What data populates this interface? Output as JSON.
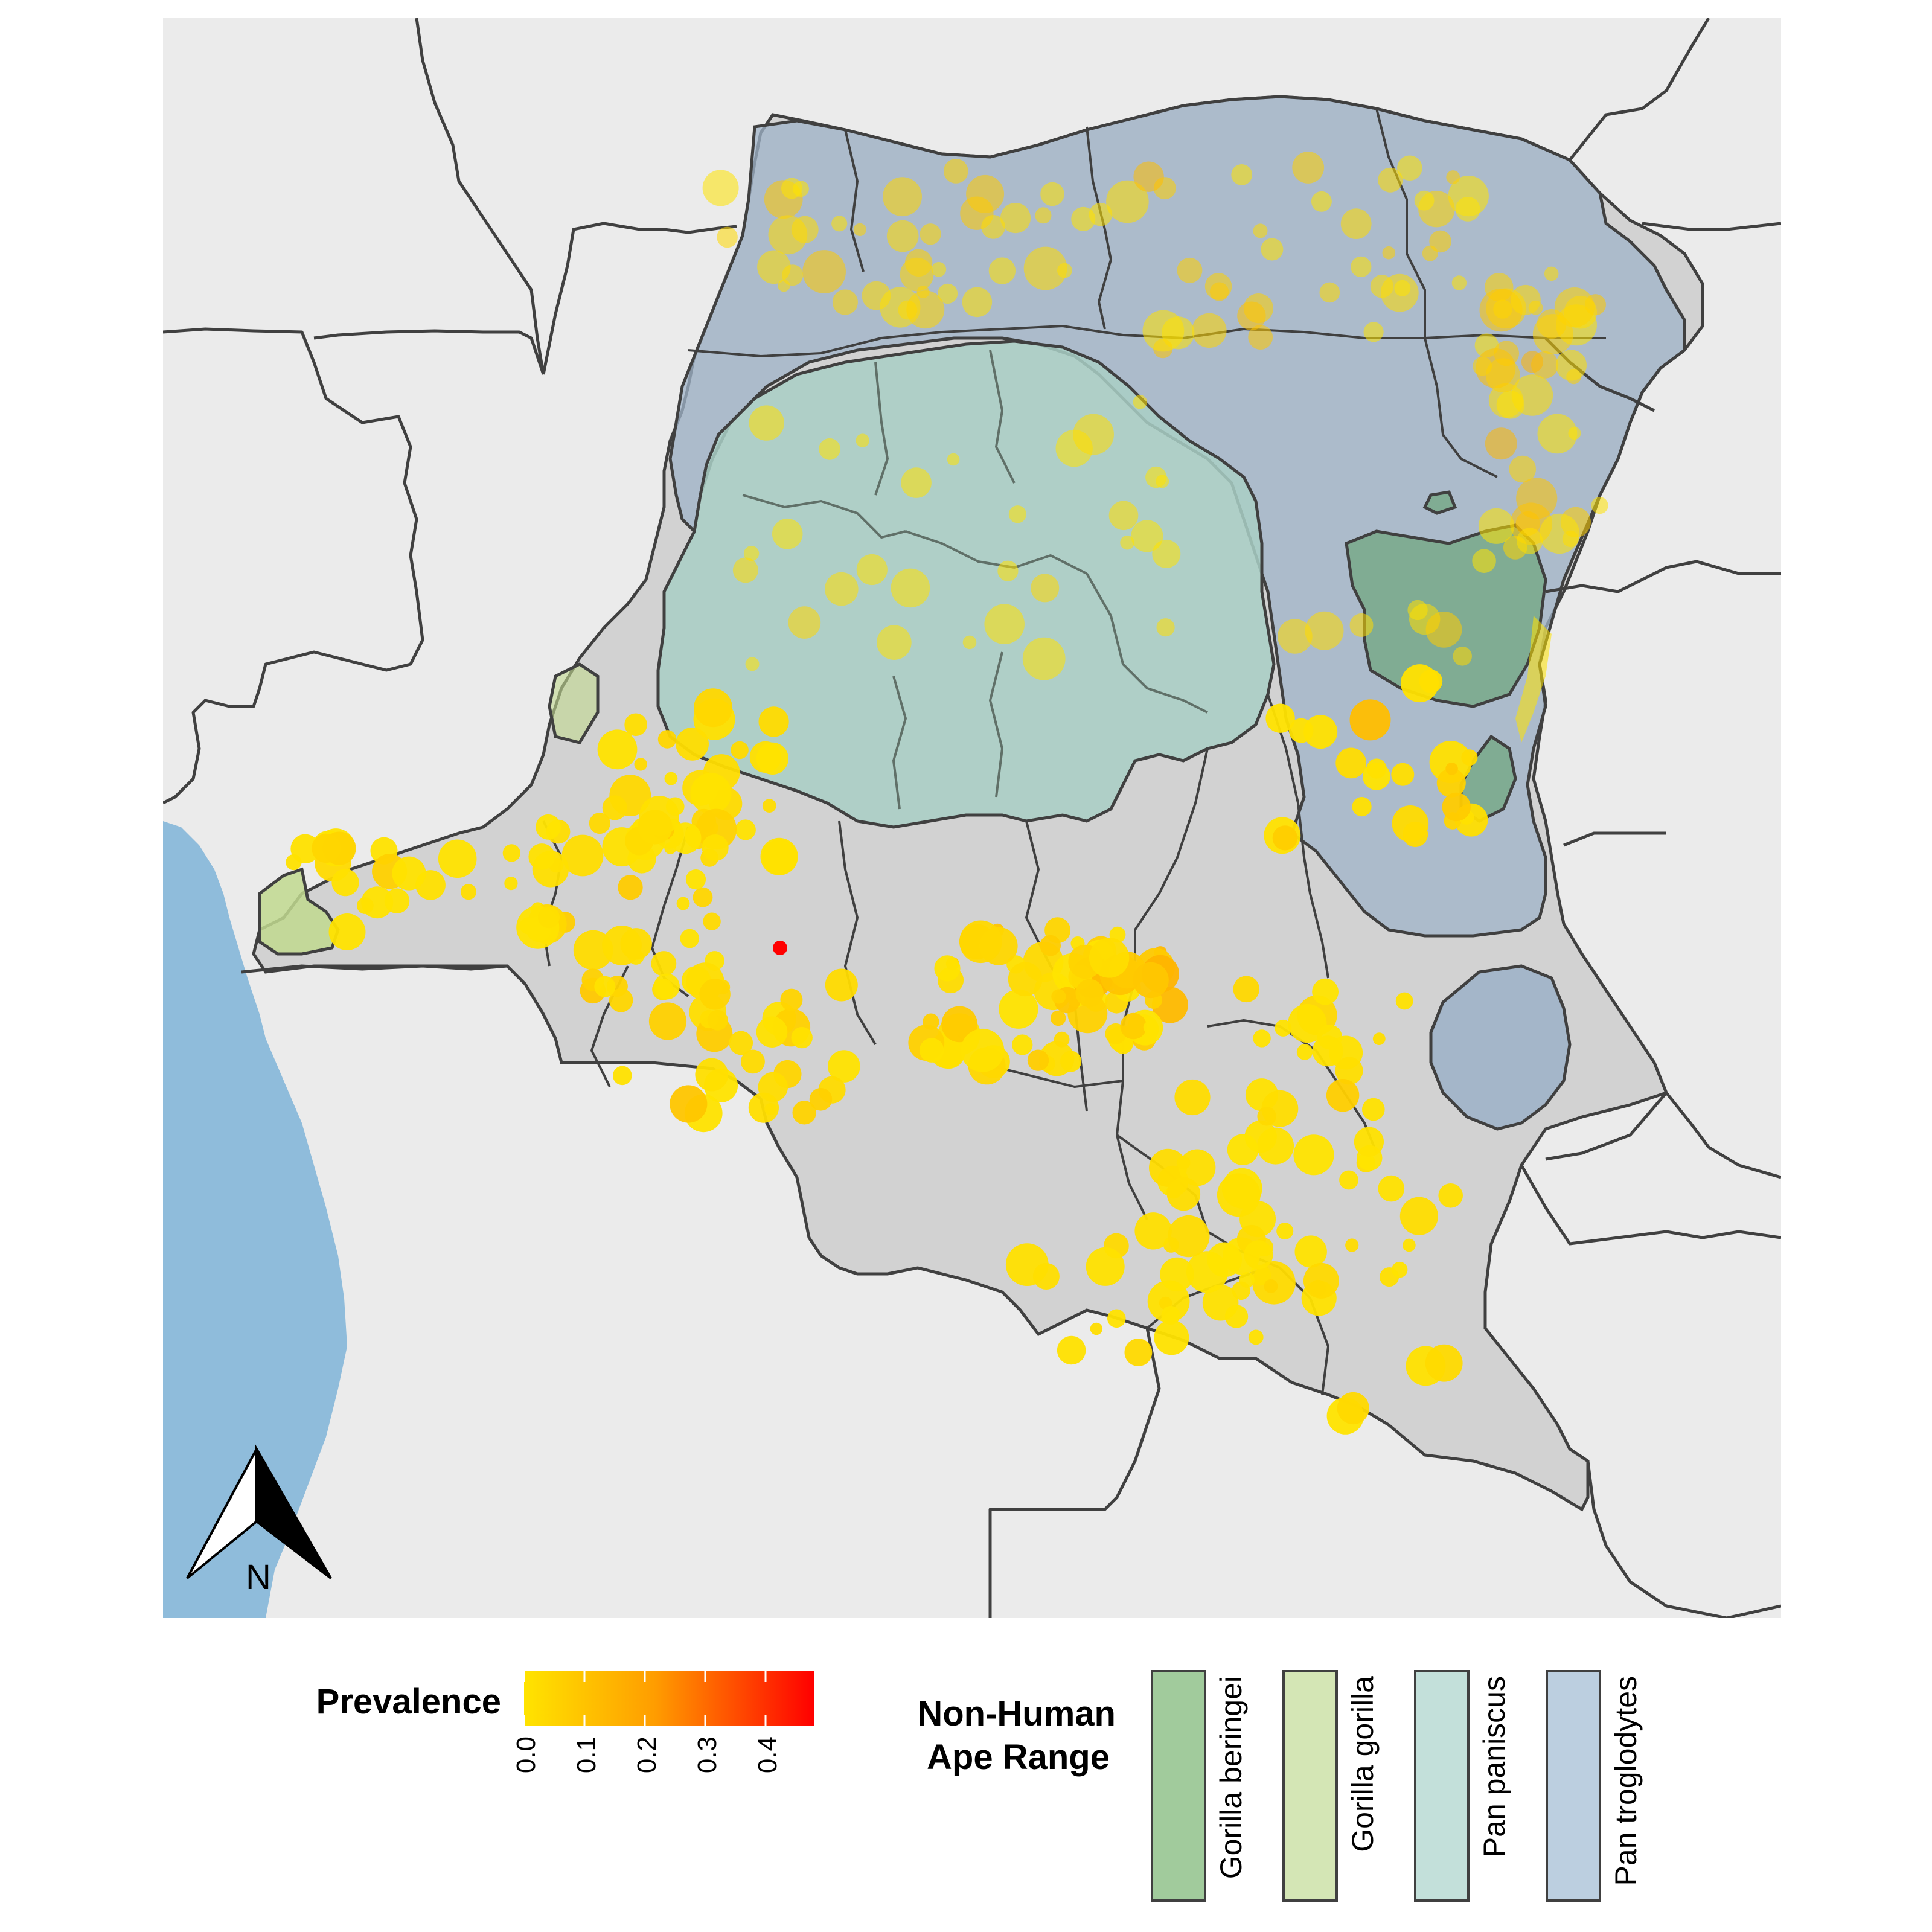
{
  "north_arrow": {
    "label": "N"
  },
  "colors": {
    "ocean": "#8fbcdb",
    "land_bg": "#ebebeb",
    "country_fill": "#d2d2d2",
    "border": "#404040",
    "gorilla_beringei": "#a1cb9c",
    "gorilla_gorilla": "#d4e6b5",
    "pan_paniscus": "#c3e0da",
    "pan_troglodytes": "#bccfe0",
    "prevalence_low": "#ffe400",
    "prevalence_mid": "#ff8c00",
    "prevalence_high": "#ff0000"
  },
  "prevalence_legend": {
    "title": "Prevalence",
    "ticks": [
      "0.0",
      "0.1",
      "0.2",
      "0.3",
      "0.4"
    ],
    "max": 0.48
  },
  "ape_legend": {
    "title_line1": "Non-Human",
    "title_line2": "Ape Range",
    "items": [
      {
        "label": "Gorilla beringei",
        "color": "#a1cb9c"
      },
      {
        "label": "Gorilla gorilla",
        "color": "#d4e6b5"
      },
      {
        "label": "Pan paniscus",
        "color": "#c3e0da"
      },
      {
        "label": "Pan troglodytes",
        "color": "#bccfe0"
      }
    ]
  }
}
